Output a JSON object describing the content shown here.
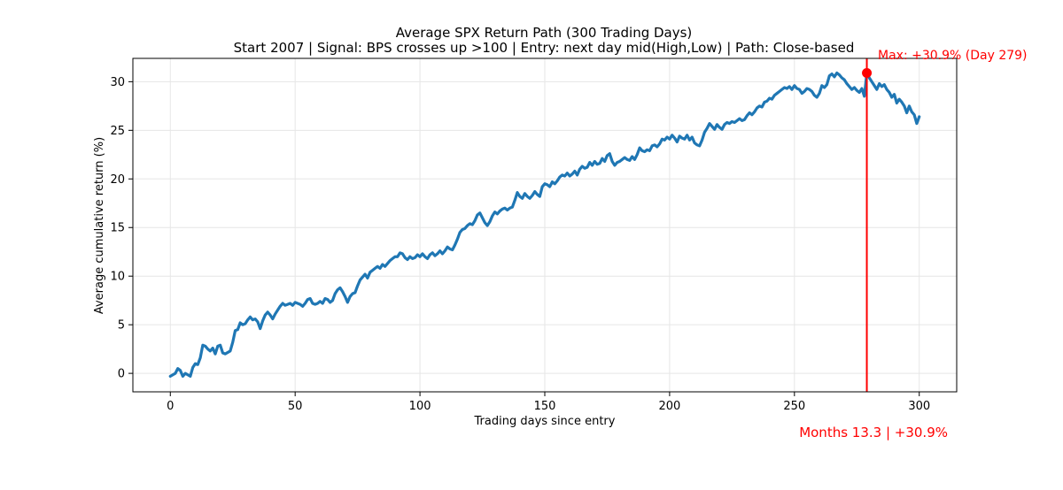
{
  "chart_data": {
    "type": "line",
    "title": "Average SPX Return Path (300 Trading Days)",
    "subtitle": "Start 2007 | Signal: BPS crosses up >100 | Entry: next day mid(High,Low) | Path: Close-based",
    "xlabel": "Trading days since entry",
    "ylabel": "Average cumulative return (%)",
    "xlim": [
      -15,
      315
    ],
    "ylim": [
      -1.9,
      32.4
    ],
    "xticks": [
      0,
      50,
      100,
      150,
      200,
      250,
      300
    ],
    "yticks": [
      0,
      5,
      10,
      15,
      20,
      25,
      30
    ],
    "grid": true,
    "colors": {
      "line": "#1f77b4",
      "marker": "#ff0000",
      "annotation": "#ff0000"
    },
    "series": [
      {
        "points": [
          [
            0,
            -0.3
          ],
          [
            2,
            0.0
          ],
          [
            3,
            0.5
          ],
          [
            4,
            0.3
          ],
          [
            5,
            -0.3
          ],
          [
            6,
            0.0
          ],
          [
            8,
            -0.3
          ],
          [
            9,
            0.6
          ],
          [
            10,
            1.0
          ],
          [
            11,
            0.9
          ],
          [
            12,
            1.6
          ],
          [
            13,
            2.9
          ],
          [
            14,
            2.8
          ],
          [
            15,
            2.5
          ],
          [
            16,
            2.3
          ],
          [
            17,
            2.6
          ],
          [
            18,
            2.0
          ],
          [
            19,
            2.8
          ],
          [
            20,
            2.9
          ],
          [
            21,
            2.1
          ],
          [
            22,
            2.0
          ],
          [
            24,
            2.3
          ],
          [
            25,
            3.2
          ],
          [
            26,
            4.4
          ],
          [
            27,
            4.5
          ],
          [
            28,
            5.2
          ],
          [
            29,
            5.0
          ],
          [
            30,
            5.1
          ],
          [
            31,
            5.5
          ],
          [
            32,
            5.8
          ],
          [
            33,
            5.5
          ],
          [
            34,
            5.6
          ],
          [
            35,
            5.3
          ],
          [
            36,
            4.6
          ],
          [
            37,
            5.4
          ],
          [
            38,
            6.0
          ],
          [
            39,
            6.3
          ],
          [
            40,
            6.0
          ],
          [
            41,
            5.6
          ],
          [
            42,
            6.1
          ],
          [
            43,
            6.5
          ],
          [
            44,
            6.9
          ],
          [
            45,
            7.2
          ],
          [
            46,
            7.0
          ],
          [
            47,
            7.1
          ],
          [
            48,
            7.2
          ],
          [
            49,
            7.0
          ],
          [
            50,
            7.3
          ],
          [
            51,
            7.2
          ],
          [
            52,
            7.1
          ],
          [
            53,
            6.9
          ],
          [
            54,
            7.2
          ],
          [
            55,
            7.6
          ],
          [
            56,
            7.7
          ],
          [
            57,
            7.2
          ],
          [
            58,
            7.1
          ],
          [
            59,
            7.2
          ],
          [
            60,
            7.4
          ],
          [
            61,
            7.2
          ],
          [
            62,
            7.7
          ],
          [
            63,
            7.6
          ],
          [
            64,
            7.3
          ],
          [
            65,
            7.5
          ],
          [
            66,
            8.2
          ],
          [
            67,
            8.6
          ],
          [
            68,
            8.8
          ],
          [
            69,
            8.4
          ],
          [
            70,
            7.9
          ],
          [
            71,
            7.3
          ],
          [
            72,
            7.9
          ],
          [
            73,
            8.2
          ],
          [
            74,
            8.3
          ],
          [
            75,
            9.0
          ],
          [
            76,
            9.6
          ],
          [
            77,
            9.9
          ],
          [
            78,
            10.2
          ],
          [
            79,
            9.8
          ],
          [
            80,
            10.4
          ],
          [
            81,
            10.6
          ],
          [
            82,
            10.8
          ],
          [
            83,
            11.0
          ],
          [
            84,
            10.8
          ],
          [
            85,
            11.2
          ],
          [
            86,
            11.0
          ],
          [
            87,
            11.3
          ],
          [
            88,
            11.6
          ],
          [
            89,
            11.8
          ],
          [
            90,
            12.0
          ],
          [
            91,
            12.0
          ],
          [
            92,
            12.4
          ],
          [
            93,
            12.3
          ],
          [
            94,
            11.9
          ],
          [
            95,
            11.7
          ],
          [
            96,
            12.0
          ],
          [
            97,
            11.8
          ],
          [
            98,
            11.9
          ],
          [
            99,
            12.2
          ],
          [
            100,
            12.0
          ],
          [
            101,
            12.3
          ],
          [
            102,
            12.0
          ],
          [
            103,
            11.8
          ],
          [
            104,
            12.2
          ],
          [
            105,
            12.4
          ],
          [
            106,
            12.1
          ],
          [
            107,
            12.3
          ],
          [
            108,
            12.6
          ],
          [
            109,
            12.3
          ],
          [
            110,
            12.6
          ],
          [
            111,
            13.0
          ],
          [
            112,
            12.8
          ],
          [
            113,
            12.7
          ],
          [
            114,
            13.2
          ],
          [
            115,
            13.8
          ],
          [
            116,
            14.5
          ],
          [
            117,
            14.8
          ],
          [
            118,
            14.9
          ],
          [
            119,
            15.2
          ],
          [
            120,
            15.4
          ],
          [
            121,
            15.3
          ],
          [
            122,
            15.7
          ],
          [
            123,
            16.3
          ],
          [
            124,
            16.5
          ],
          [
            125,
            16.0
          ],
          [
            126,
            15.5
          ],
          [
            127,
            15.2
          ],
          [
            128,
            15.6
          ],
          [
            129,
            16.2
          ],
          [
            130,
            16.6
          ],
          [
            131,
            16.4
          ],
          [
            132,
            16.7
          ],
          [
            133,
            16.9
          ],
          [
            134,
            17.0
          ],
          [
            135,
            16.8
          ],
          [
            136,
            17.0
          ],
          [
            137,
            17.1
          ],
          [
            138,
            17.8
          ],
          [
            139,
            18.6
          ],
          [
            140,
            18.2
          ],
          [
            141,
            18.0
          ],
          [
            142,
            18.5
          ],
          [
            143,
            18.2
          ],
          [
            144,
            18.0
          ],
          [
            145,
            18.3
          ],
          [
            146,
            18.7
          ],
          [
            147,
            18.4
          ],
          [
            148,
            18.2
          ],
          [
            149,
            19.2
          ],
          [
            150,
            19.5
          ],
          [
            151,
            19.4
          ],
          [
            152,
            19.2
          ],
          [
            153,
            19.7
          ],
          [
            154,
            19.5
          ],
          [
            155,
            19.8
          ],
          [
            156,
            20.2
          ],
          [
            157,
            20.4
          ],
          [
            158,
            20.3
          ],
          [
            159,
            20.6
          ],
          [
            160,
            20.3
          ],
          [
            161,
            20.5
          ],
          [
            162,
            20.8
          ],
          [
            163,
            20.4
          ],
          [
            164,
            21.0
          ],
          [
            165,
            21.3
          ],
          [
            166,
            21.1
          ],
          [
            167,
            21.2
          ],
          [
            168,
            21.7
          ],
          [
            169,
            21.4
          ],
          [
            170,
            21.8
          ],
          [
            171,
            21.5
          ],
          [
            172,
            21.6
          ],
          [
            173,
            22.1
          ],
          [
            174,
            21.8
          ],
          [
            175,
            22.4
          ],
          [
            176,
            22.6
          ],
          [
            177,
            21.8
          ],
          [
            178,
            21.4
          ],
          [
            179,
            21.7
          ],
          [
            180,
            21.8
          ],
          [
            181,
            22.0
          ],
          [
            182,
            22.2
          ],
          [
            183,
            22.0
          ],
          [
            184,
            21.9
          ],
          [
            185,
            22.3
          ],
          [
            186,
            22.0
          ],
          [
            187,
            22.5
          ],
          [
            188,
            23.2
          ],
          [
            189,
            22.9
          ],
          [
            190,
            22.8
          ],
          [
            191,
            23.0
          ],
          [
            192,
            22.9
          ],
          [
            193,
            23.4
          ],
          [
            194,
            23.5
          ],
          [
            195,
            23.3
          ],
          [
            196,
            23.6
          ],
          [
            197,
            24.1
          ],
          [
            198,
            24.0
          ],
          [
            199,
            24.3
          ],
          [
            200,
            24.1
          ],
          [
            201,
            24.5
          ],
          [
            202,
            24.2
          ],
          [
            203,
            23.8
          ],
          [
            204,
            24.4
          ],
          [
            205,
            24.2
          ],
          [
            206,
            24.1
          ],
          [
            207,
            24.5
          ],
          [
            208,
            24.0
          ],
          [
            209,
            24.3
          ],
          [
            210,
            23.7
          ],
          [
            211,
            23.5
          ],
          [
            212,
            23.4
          ],
          [
            213,
            24.0
          ],
          [
            214,
            24.8
          ],
          [
            215,
            25.2
          ],
          [
            216,
            25.7
          ],
          [
            217,
            25.4
          ],
          [
            218,
            25.1
          ],
          [
            219,
            25.6
          ],
          [
            220,
            25.3
          ],
          [
            221,
            25.1
          ],
          [
            222,
            25.6
          ],
          [
            223,
            25.8
          ],
          [
            224,
            25.7
          ],
          [
            225,
            25.9
          ],
          [
            226,
            25.8
          ],
          [
            227,
            26.0
          ],
          [
            228,
            26.2
          ],
          [
            229,
            26.0
          ],
          [
            230,
            26.1
          ],
          [
            231,
            26.5
          ],
          [
            232,
            26.8
          ],
          [
            233,
            26.6
          ],
          [
            234,
            26.9
          ],
          [
            235,
            27.3
          ],
          [
            236,
            27.5
          ],
          [
            237,
            27.4
          ],
          [
            238,
            27.9
          ],
          [
            239,
            28.0
          ],
          [
            240,
            28.3
          ],
          [
            241,
            28.2
          ],
          [
            242,
            28.6
          ],
          [
            243,
            28.8
          ],
          [
            244,
            29.0
          ],
          [
            245,
            29.2
          ],
          [
            246,
            29.4
          ],
          [
            247,
            29.3
          ],
          [
            248,
            29.5
          ],
          [
            249,
            29.2
          ],
          [
            250,
            29.6
          ],
          [
            251,
            29.3
          ],
          [
            252,
            29.2
          ],
          [
            253,
            28.8
          ],
          [
            254,
            29.0
          ],
          [
            255,
            29.3
          ],
          [
            256,
            29.2
          ],
          [
            257,
            29.0
          ],
          [
            258,
            28.6
          ],
          [
            259,
            28.4
          ],
          [
            260,
            28.8
          ],
          [
            261,
            29.6
          ],
          [
            262,
            29.4
          ],
          [
            263,
            29.7
          ],
          [
            264,
            30.6
          ],
          [
            265,
            30.8
          ],
          [
            266,
            30.5
          ],
          [
            267,
            30.9
          ],
          [
            268,
            30.7
          ],
          [
            269,
            30.4
          ],
          [
            270,
            30.2
          ],
          [
            271,
            29.8
          ],
          [
            272,
            29.5
          ],
          [
            273,
            29.2
          ],
          [
            274,
            29.4
          ],
          [
            275,
            29.1
          ],
          [
            276,
            28.9
          ],
          [
            277,
            29.3
          ],
          [
            278,
            28.5
          ],
          [
            279,
            30.9
          ],
          [
            280,
            30.4
          ],
          [
            281,
            30.0
          ],
          [
            282,
            29.6
          ],
          [
            283,
            29.2
          ],
          [
            284,
            29.8
          ],
          [
            285,
            29.5
          ],
          [
            286,
            29.7
          ],
          [
            287,
            29.2
          ],
          [
            288,
            28.9
          ],
          [
            289,
            28.4
          ],
          [
            290,
            28.7
          ],
          [
            291,
            27.8
          ],
          [
            292,
            28.2
          ],
          [
            293,
            27.9
          ],
          [
            294,
            27.5
          ],
          [
            295,
            26.8
          ],
          [
            296,
            27.5
          ],
          [
            297,
            26.9
          ],
          [
            298,
            26.6
          ],
          [
            299,
            25.7
          ],
          [
            300,
            26.4
          ]
        ]
      }
    ],
    "max_point": {
      "x": 279,
      "y": 30.9
    },
    "vline_x": 279,
    "annotation": "Max: +30.9% (Day 279)",
    "footer": "Months 13.3  |  +30.9%"
  }
}
